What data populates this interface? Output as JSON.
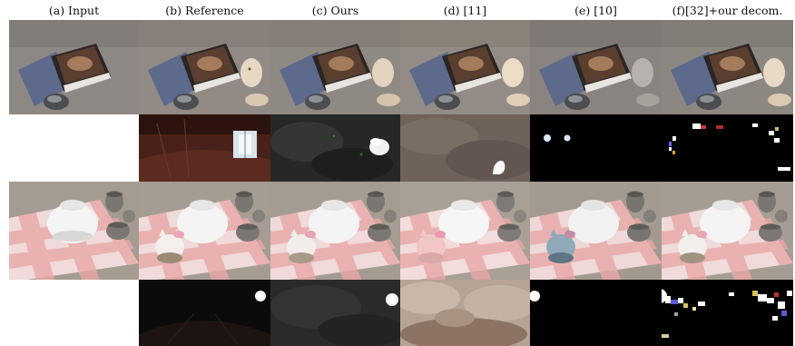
{
  "figure": {
    "column_headers": [
      "(a) Input",
      "(b) Reference",
      "(c) Ours",
      "(d) [11]",
      "(e) [10]",
      "(f)[32]+our decom."
    ],
    "rows": [
      {
        "scene": "books-and-bunny",
        "kind": "rendered-scene",
        "columns": [
          "input",
          "reference",
          "ours",
          "[11]",
          "[10]",
          "[32]+our decom."
        ]
      },
      {
        "scene": "books-and-bunny",
        "kind": "environment-map",
        "columns": [
          "",
          "reference",
          "ours",
          "[11]",
          "[10]",
          "[32]+our decom."
        ]
      },
      {
        "scene": "teapot-and-cups",
        "kind": "rendered-scene",
        "columns": [
          "input",
          "reference",
          "ours",
          "[11]",
          "[10]",
          "[32]+our decom."
        ]
      },
      {
        "scene": "teapot-and-cups",
        "kind": "environment-map",
        "columns": [
          "",
          "reference",
          "ours",
          "[11]",
          "[10]",
          "[32]+our decom."
        ]
      }
    ]
  }
}
